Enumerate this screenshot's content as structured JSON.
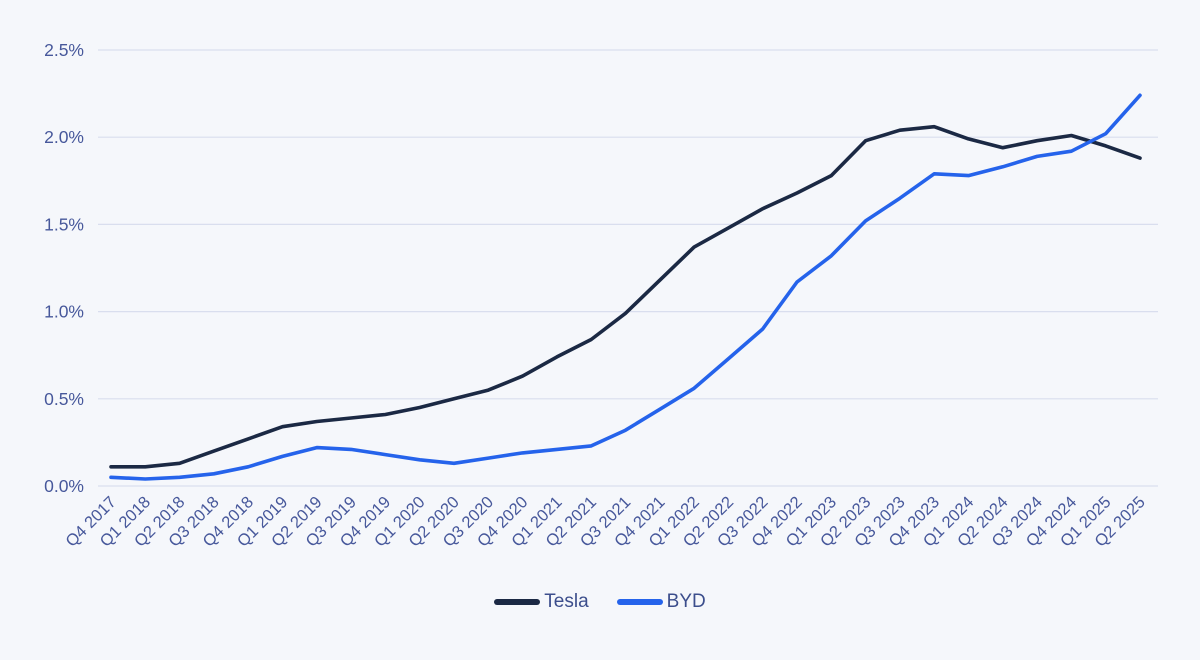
{
  "colors": {
    "background": "#f5f7fb",
    "gridline": "#d9deee",
    "axis_text": "#47589b",
    "legend_text": "#3c4e8c",
    "tesla_line": "#1b2944",
    "byd_line": "#2563eb"
  },
  "chart_data": {
    "type": "line",
    "title": "",
    "categories": [
      "Q4 2017",
      "Q1 2018",
      "Q2 2018",
      "Q3 2018",
      "Q4 2018",
      "Q1 2019",
      "Q2 2019",
      "Q3 2019",
      "Q4 2019",
      "Q1 2020",
      "Q2 2020",
      "Q3 2020",
      "Q4 2020",
      "Q1 2021",
      "Q2 2021",
      "Q3 2021",
      "Q4 2021",
      "Q1 2022",
      "Q2 2022",
      "Q3 2022",
      "Q4 2022",
      "Q1 2023",
      "Q2 2023",
      "Q3 2023",
      "Q4 2023",
      "Q1 2024",
      "Q2 2024",
      "Q3 2024",
      "Q4 2024",
      "Q1 2025",
      "Q2 2025"
    ],
    "series": [
      {
        "name": "Tesla",
        "color": "#1b2944",
        "values": [
          0.11,
          0.11,
          0.13,
          0.2,
          0.27,
          0.34,
          0.37,
          0.39,
          0.41,
          0.45,
          0.5,
          0.55,
          0.63,
          0.74,
          0.84,
          0.99,
          1.18,
          1.37,
          1.48,
          1.59,
          1.68,
          1.78,
          1.98,
          2.04,
          2.06,
          1.99,
          1.94,
          1.98,
          2.01,
          1.95,
          1.88
        ]
      },
      {
        "name": "BYD",
        "color": "#2563eb",
        "values": [
          0.05,
          0.04,
          0.05,
          0.07,
          0.11,
          0.17,
          0.22,
          0.21,
          0.18,
          0.15,
          0.13,
          0.16,
          0.19,
          0.21,
          0.23,
          0.32,
          0.44,
          0.56,
          0.73,
          0.9,
          1.17,
          1.32,
          1.52,
          1.65,
          1.79,
          1.78,
          1.83,
          1.89,
          1.92,
          2.02,
          2.24
        ]
      }
    ],
    "ylim": [
      0,
      2.5
    ],
    "y_ticks": [
      {
        "value": 0.0,
        "label": "0.0%"
      },
      {
        "value": 0.5,
        "label": "0.5%"
      },
      {
        "value": 1.0,
        "label": "1.0%"
      },
      {
        "value": 1.5,
        "label": "1.5%"
      },
      {
        "value": 2.0,
        "label": "2.0%"
      },
      {
        "value": 2.5,
        "label": "2.5%"
      }
    ],
    "grid": true,
    "legend_position": "bottom"
  }
}
